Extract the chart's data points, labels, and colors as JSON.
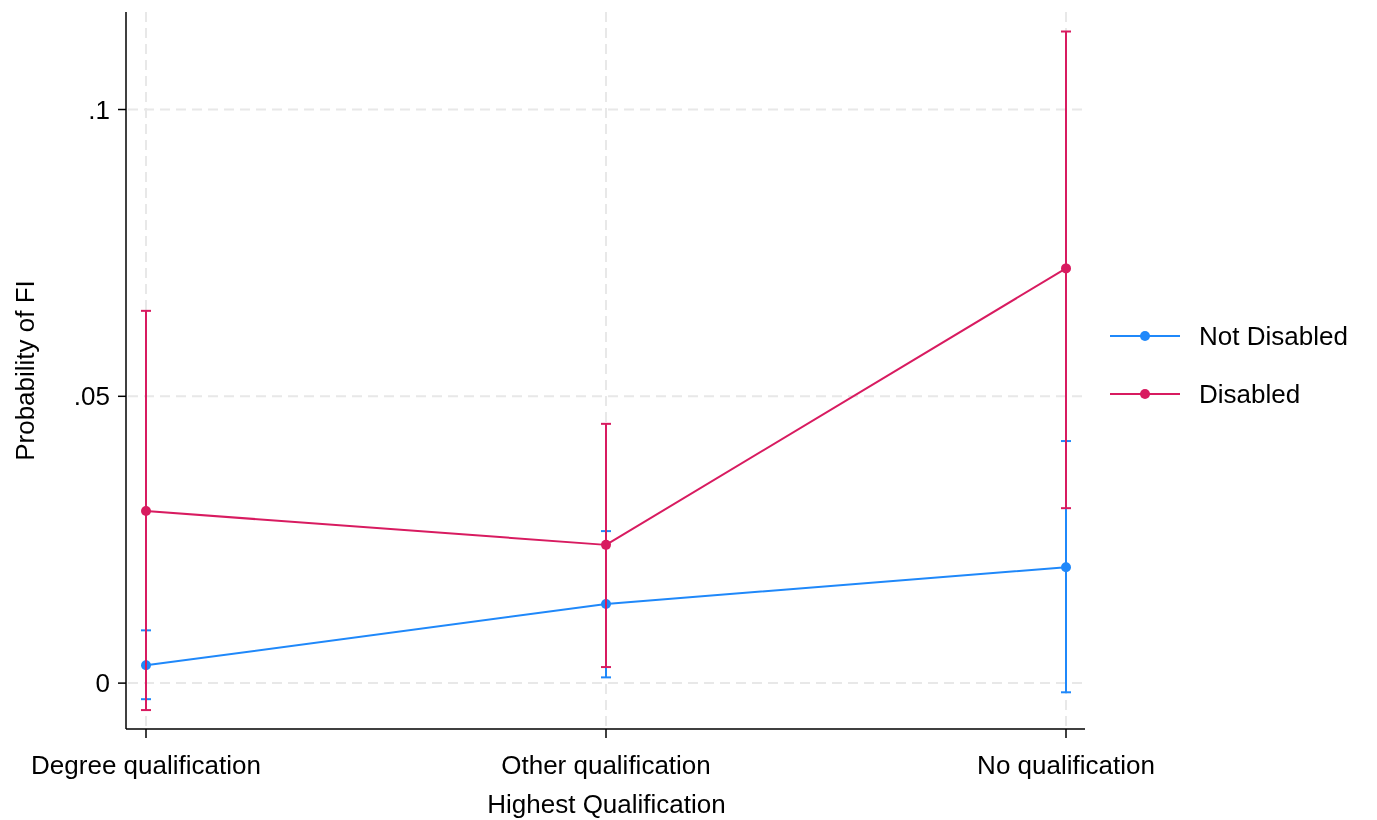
{
  "chart_data": {
    "type": "line",
    "xlabel": "Highest Qualification",
    "ylabel": "Probability of FI",
    "categories": [
      "Degree qualification",
      "Other qualification",
      "No qualification"
    ],
    "series": [
      {
        "name": "Not Disabled",
        "color": "#1f88fa",
        "values": [
          0.0031,
          0.0138,
          0.0202
        ],
        "errors": [
          [
            -0.0028,
            0.0092
          ],
          [
            0.001,
            0.0265
          ],
          [
            -0.0016,
            0.0422
          ]
        ]
      },
      {
        "name": "Disabled",
        "color": "#d81b60",
        "values": [
          0.03,
          0.0241,
          0.0723
        ],
        "errors": [
          [
            -0.0047,
            0.0649
          ],
          [
            0.0028,
            0.0452
          ],
          [
            0.0305,
            0.1136
          ]
        ]
      }
    ],
    "ylim": [
      -0.008,
      0.117
    ],
    "yticks": [
      0,
      {
        "value": 0.05,
        "label": ".05"
      },
      {
        "value": 0.1,
        "label": ".1"
      }
    ],
    "grid": true,
    "legend": "right",
    "marker": "circle",
    "line_style": "solid"
  }
}
